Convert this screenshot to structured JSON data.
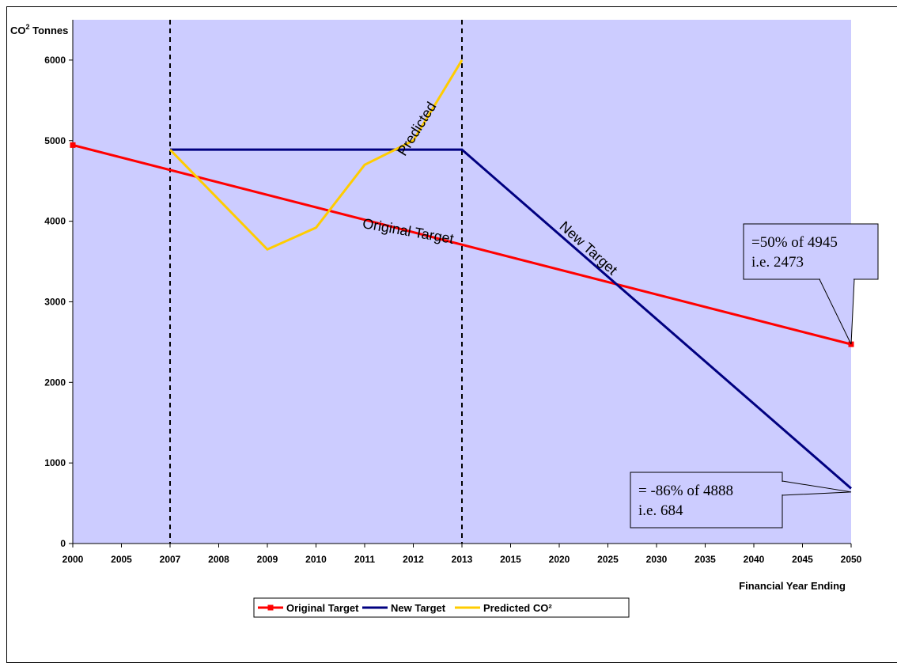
{
  "chart_data": {
    "type": "line",
    "ylabel_prefix": "CO",
    "ylabel_sup": "2",
    "ylabel_suffix": " Tonnes",
    "xlabel": "Financial Year Ending",
    "categories": [
      "2000",
      "2005",
      "2007",
      "2008",
      "2009",
      "2010",
      "2011",
      "2012",
      "2013",
      "2015",
      "2020",
      "2025",
      "2030",
      "2035",
      "2040",
      "2045",
      "2050"
    ],
    "ylim": [
      0,
      6500
    ],
    "yticks": [
      0,
      1000,
      2000,
      3000,
      4000,
      5000,
      6000
    ],
    "plot_background": "#ccccff",
    "vertical_markers": [
      "2007",
      "2013"
    ],
    "series": [
      {
        "name": "Original Target",
        "color": "#ff0000",
        "marker": "square",
        "points": [
          {
            "x": "2000",
            "y": 4945
          },
          {
            "x": "2050",
            "y": 2473
          }
        ]
      },
      {
        "name": "New Target",
        "color": "#000080",
        "marker": "none",
        "points": [
          {
            "x": "2007",
            "y": 4888
          },
          {
            "x": "2013",
            "y": 4888
          },
          {
            "x": "2050",
            "y": 684
          }
        ]
      },
      {
        "name": "Predicted CO²",
        "color": "#ffcc00",
        "marker": "none",
        "points": [
          {
            "x": "2007",
            "y": 4888
          },
          {
            "x": "2009",
            "y": 3650
          },
          {
            "x": "2010",
            "y": 3920
          },
          {
            "x": "2011",
            "y": 4700
          },
          {
            "x": "2012",
            "y": 5000
          },
          {
            "x": "2013",
            "y": 6000
          }
        ]
      }
    ],
    "inline_labels": [
      {
        "series": "Original Target",
        "text": "Original Target"
      },
      {
        "series": "New Target",
        "text": "New Target"
      },
      {
        "series": "Predicted CO²",
        "text": "Predicted"
      }
    ],
    "callouts": [
      {
        "lines": [
          "=50% of 4945",
          "i.e. 2473"
        ],
        "target_x": "2050",
        "target_y": 2473
      },
      {
        "lines": [
          "= -86% of 4888",
          "i.e. 684"
        ],
        "target_x": "2050",
        "target_y": 640
      }
    ],
    "legend": {
      "position": "bottom",
      "entries": [
        "Original Target",
        "New Target",
        "Predicted CO²"
      ]
    }
  }
}
